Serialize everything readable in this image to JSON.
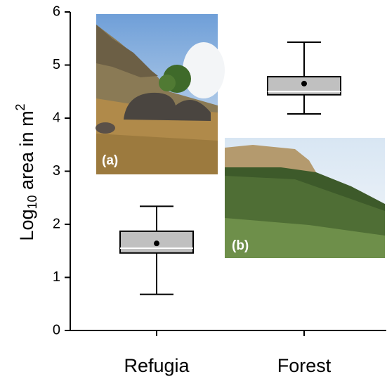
{
  "chart_data": {
    "type": "box",
    "y_label": {
      "base": "Log",
      "sub": "10",
      "rest": " area in m",
      "sup": "2"
    },
    "categories": [
      "Refugia",
      "Forest"
    ],
    "boxes": [
      {
        "whisker_low": 0.68,
        "q1": 1.46,
        "median": 1.55,
        "q3": 1.87,
        "whisker_high": 2.34,
        "mean": 1.64
      },
      {
        "whisker_low": 4.08,
        "q1": 4.44,
        "median": 4.5,
        "q3": 4.78,
        "whisker_high": 5.43,
        "mean": 4.65
      }
    ],
    "color": "#c0c0c0",
    "ylim": [
      0,
      6
    ],
    "yticks": [
      0,
      1,
      2,
      3,
      4,
      5,
      6
    ],
    "insets": [
      {
        "label": "(a)"
      },
      {
        "label": "(b)"
      }
    ]
  }
}
